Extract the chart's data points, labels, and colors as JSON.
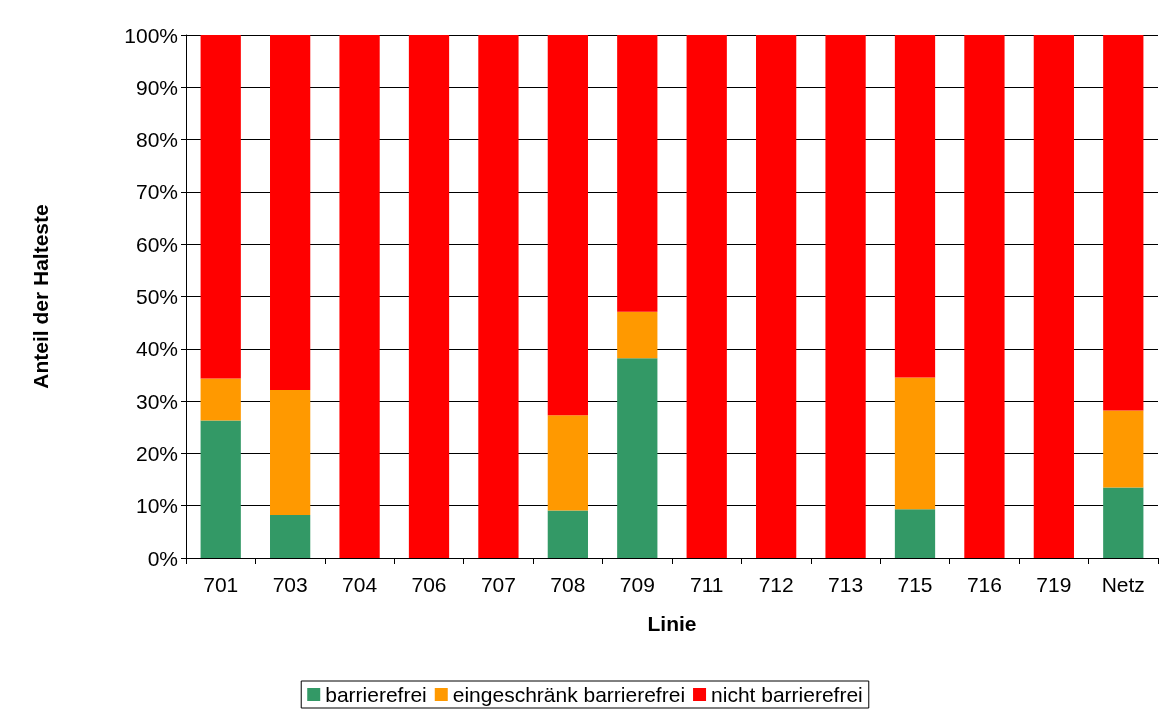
{
  "chart_data": {
    "type": "bar",
    "stacked": true,
    "xlabel": "Linie",
    "ylabel": "Anteil der Halteste",
    "categories": [
      "701",
      "703",
      "704",
      "706",
      "707",
      "708",
      "709",
      "711",
      "712",
      "713",
      "715",
      "716",
      "719",
      "Netz"
    ],
    "series": [
      {
        "name": "barrierefrei",
        "color": "#339966",
        "values": [
          26.3,
          8.2,
          0,
          0,
          0,
          9.1,
          38.2,
          0,
          0,
          0,
          9.3,
          0,
          0,
          13.5
        ]
      },
      {
        "name": "eingeschränk barrierefrei",
        "color": "#ff9900",
        "values": [
          8,
          23.9,
          0,
          0,
          0,
          18.2,
          8.9,
          0,
          0,
          0,
          25.2,
          0,
          0,
          14.7
        ]
      },
      {
        "name": "nicht barrierefrei",
        "color": "#ff0000",
        "values": [
          65.7,
          67.9,
          100,
          100,
          100,
          72.7,
          52.9,
          100,
          100,
          100,
          65.5,
          100,
          100,
          71.8
        ]
      }
    ],
    "ylim": [
      0,
      100
    ],
    "yticks": [
      {
        "value": 0,
        "label": "0%"
      },
      {
        "value": 10,
        "label": "10%"
      },
      {
        "value": 20,
        "label": "20%"
      },
      {
        "value": 30,
        "label": "30%"
      },
      {
        "value": 40,
        "label": "40%"
      },
      {
        "value": 50,
        "label": "50%"
      },
      {
        "value": 60,
        "label": "60%"
      },
      {
        "value": 70,
        "label": "70%"
      },
      {
        "value": 80,
        "label": "80%"
      },
      {
        "value": 90,
        "label": "90%"
      },
      {
        "value": 100,
        "label": "100%"
      }
    ],
    "grid": "y",
    "legend": "bottom"
  }
}
